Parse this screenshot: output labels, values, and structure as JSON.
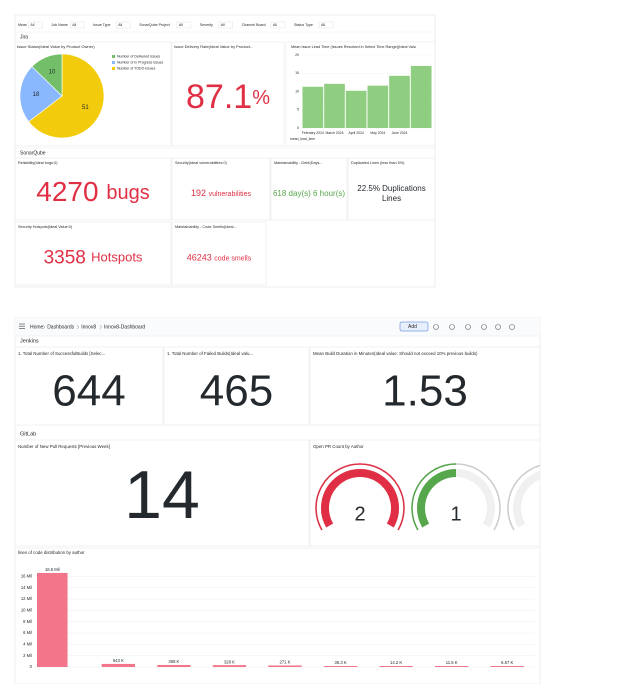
{
  "filters": [
    {
      "label": "Meas",
      "value": "All"
    },
    {
      "label": "Job Name",
      "value": "All"
    },
    {
      "label": "Issue Type",
      "value": "All"
    },
    {
      "label": "SonarQube Project",
      "value": "All"
    },
    {
      "label": "Severity",
      "value": "All"
    },
    {
      "label": "Channel Board",
      "value": "All"
    },
    {
      "label": "Status Type",
      "value": "All"
    }
  ],
  "jira": {
    "title": "Jira",
    "issue_status": {
      "type": "pie",
      "title": "Issue Status(Ideal Value by Product Owner)",
      "categories": [
        "Number of Delivered Issues",
        "Number of In Progress Issues",
        "Number of TODO Issues"
      ],
      "values": [
        10,
        18,
        51
      ],
      "colors": [
        "#73bf69",
        "#8ab8ff",
        "#f2cc0c"
      ]
    },
    "delivery_rate": {
      "title": "Issue Delivery Rate(Ideal Value by Product...",
      "value": "87.1",
      "unit": "%",
      "color": "#e02f44"
    },
    "lead_time": {
      "type": "bar",
      "title": "Mean Issue Lead Time (Issues Resolved in Select Time Range)(Ideal Valu",
      "categories": [
        "February 2024",
        "March 2024",
        "April 2024",
        "May 2024",
        "June 2024",
        null
      ],
      "series_name": "mean_lead_time",
      "values": [
        11.3,
        12.1,
        10.2,
        11.6,
        14.3,
        17.0
      ],
      "color": "#8fce81",
      "ylim": [
        0,
        20
      ],
      "yticks": [
        0,
        5,
        10,
        15,
        20
      ]
    }
  },
  "sonarqube": {
    "title": "SonarQube",
    "panels": [
      {
        "title": "Reliability(Ideal bugs:0)",
        "value": "4270",
        "unit": "bugs",
        "color": "#e02f44"
      },
      {
        "title": "Security(Ideal vulnerabilities:0)",
        "value": "192",
        "unit": "vulnerabilities",
        "color": "#e02f44"
      },
      {
        "title": "Maintainability - Debt(Days...",
        "value": "618 day(s) 6 hour(s)",
        "color": "#56a64b"
      },
      {
        "title": "Duplicated Lines (less than 5%)",
        "value": "22.5% Duplications",
        "unit": "Lines",
        "color": "#e02f44"
      },
      {
        "title": "Security Hotspots(Ideal Value:0)",
        "value": "3358",
        "unit": "Hotspots",
        "color": "#e02f44"
      },
      {
        "title": "Maintainability - Code Smells(Ideal...",
        "value": "46243",
        "unit": "code smells",
        "color": "#e02f44"
      }
    ]
  },
  "toolbar": {
    "breadcrumb": [
      "Home",
      "Dashboards",
      "Innov8",
      "Innov8-Dashboard"
    ],
    "add": "Add"
  },
  "jenkins": {
    "title": "Jenkins",
    "panels": [
      {
        "title": "1. Total Number of SuccessfulBuilds [Selec...",
        "value": "644",
        "color": "#56a64b"
      },
      {
        "title": "1. Total Number of Failed Builds(Ideal valu...",
        "value": "465",
        "color": "#e02f44"
      },
      {
        "title": "Mean Build Duration in Minutes(Ideal value: Should not exceed 10% previous builds)",
        "value": "1.53",
        "color": "#ff780a"
      }
    ]
  },
  "gitlab": {
    "title": "GitLab",
    "new_prs": {
      "title": "Number of New Pull Requests [Previous Week]",
      "value": "14",
      "color": "#56a64b"
    },
    "open_prs": {
      "type": "gauge",
      "title": "Open PR Count by Author",
      "max": 2,
      "values": [
        2,
        1
      ],
      "colors": [
        "#e02f44",
        "#56a64b"
      ]
    }
  },
  "loc": {
    "type": "bar",
    "title": "lines of code distribution by author",
    "categories": [
      null,
      null,
      null,
      null,
      null,
      null,
      null,
      null,
      null
    ],
    "values": [
      16600000,
      543000,
      358000,
      328000,
      271000,
      36300,
      14200,
      11500,
      6570
    ],
    "value_labels": [
      "16.6 Mil",
      "543 K",
      "358 K",
      "328 K",
      "271 K",
      "36.3 K",
      "14.2 K",
      "11.5 K",
      "6.57 K"
    ],
    "color": "#f2758a",
    "ylim": [
      0,
      18000000
    ],
    "yticks": [
      {
        "value": 0,
        "label": "0"
      },
      {
        "value": 2000000,
        "label": "2 Mil"
      },
      {
        "value": 4000000,
        "label": "4 Mil"
      },
      {
        "value": 6000000,
        "label": "6 Mil"
      },
      {
        "value": 8000000,
        "label": "8 Mil"
      },
      {
        "value": 10000000,
        "label": "10 Mil"
      },
      {
        "value": 12000000,
        "label": "12 Mil"
      },
      {
        "value": 14000000,
        "label": "14 Mil"
      },
      {
        "value": 16000000,
        "label": "16 Mil"
      }
    ]
  }
}
